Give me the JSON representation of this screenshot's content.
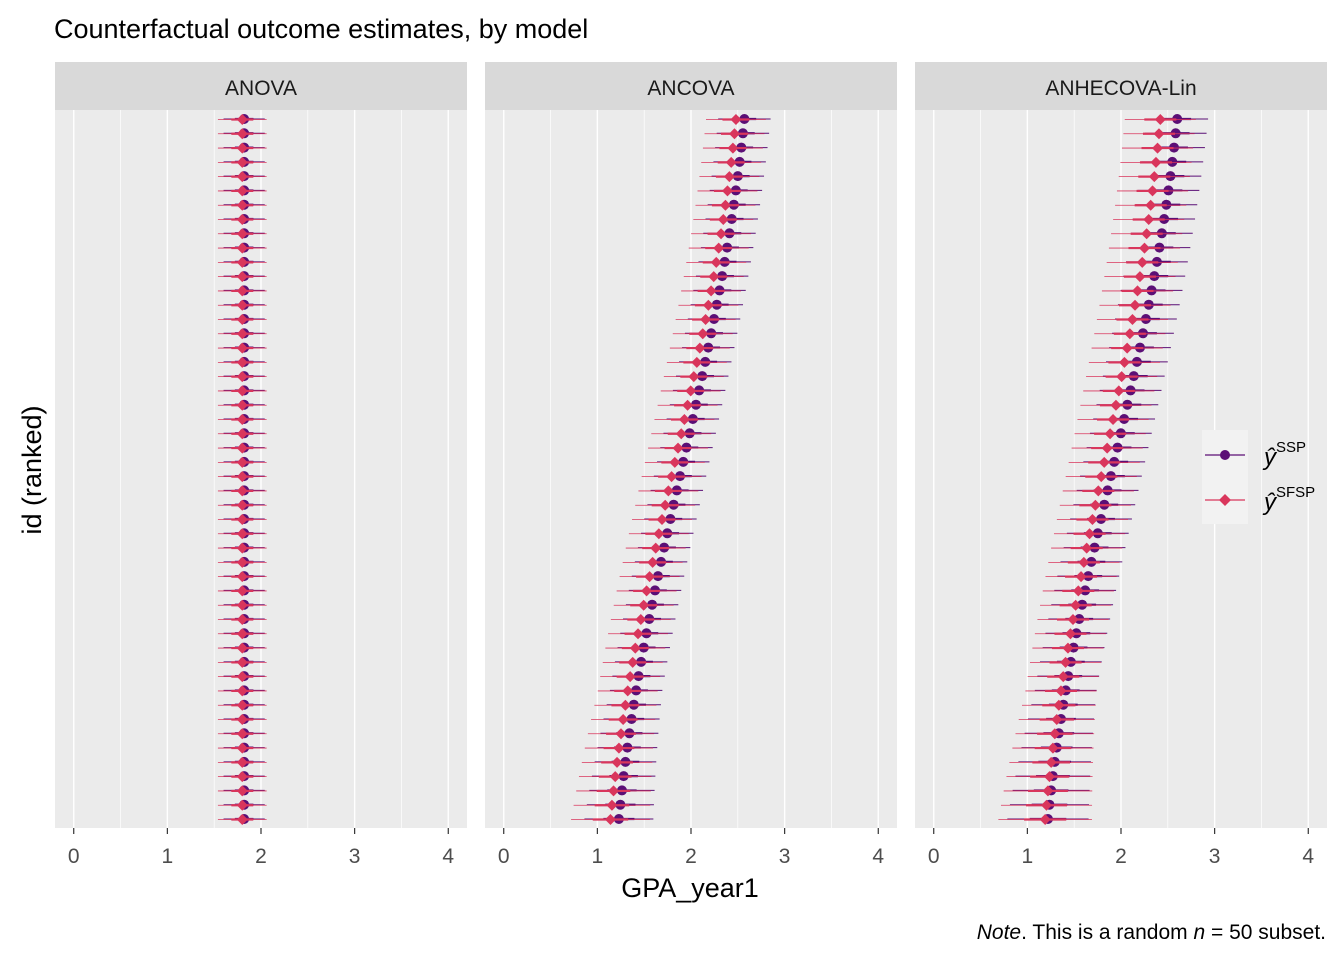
{
  "chart_data": {
    "type": "scatter",
    "title": "Counterfactual outcome estimates, by model",
    "xlabel": "GPA_year1",
    "ylabel": "id (ranked)",
    "xlim": [
      -0.2,
      4.2
    ],
    "xticks": [
      0,
      1,
      2,
      3,
      4
    ],
    "xtick_labels": [
      "0",
      "1",
      "2",
      "3",
      "4"
    ],
    "n_rows": 50,
    "grid": true,
    "legend_position": "right",
    "legend": [
      {
        "key": "ssp",
        "symbol": "ŷ",
        "superscript": "SSP",
        "color": "#5b0f76",
        "marker": "circle"
      },
      {
        "key": "sfsp",
        "symbol": "ŷ",
        "superscript": "SFSP",
        "color": "#d9365c",
        "marker": "diamond"
      }
    ],
    "note": {
      "italic": "Note",
      "text": ". This is a random ",
      "n_symbol": "n",
      "tail": " = 50 subset."
    },
    "panels": [
      {
        "strip": "ANOVA",
        "series": [
          {
            "key": "ssp",
            "center": 1.82,
            "half_width": 0.22,
            "est_top": 1.82,
            "est_bottom": 1.82
          },
          {
            "key": "sfsp",
            "center": 1.8,
            "half_width": 0.26,
            "est_top": 1.8,
            "est_bottom": 1.8
          }
        ]
      },
      {
        "strip": "ANCOVA",
        "series": [
          {
            "key": "ssp",
            "center": null,
            "half_width": 0.28,
            "est_top": 2.57,
            "est_bottom": 1.23
          },
          {
            "key": "sfsp",
            "center": null,
            "half_width": 0.32,
            "est_top": 2.48,
            "est_bottom": 1.14
          }
        ]
      },
      {
        "strip": "ANHECOVA-Lin",
        "series": [
          {
            "key": "ssp",
            "center": null,
            "half_width": 0.33,
            "est_top": 2.6,
            "est_bottom": 1.22
          },
          {
            "key": "sfsp",
            "center": null,
            "half_width": 0.38,
            "est_top": 2.42,
            "est_bottom": 1.19
          }
        ]
      }
    ]
  }
}
